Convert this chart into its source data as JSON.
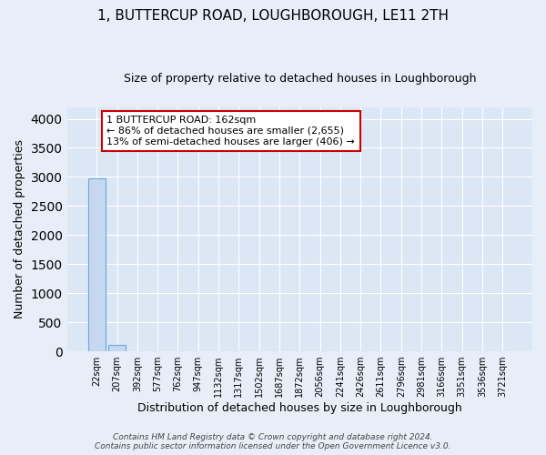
{
  "title": "1, BUTTERCUP ROAD, LOUGHBOROUGH, LE11 2TH",
  "subtitle": "Size of property relative to detached houses in Loughborough",
  "xlabel": "Distribution of detached houses by size in Loughborough",
  "ylabel": "Number of detached properties",
  "bar_labels": [
    "22sqm",
    "207sqm",
    "392sqm",
    "577sqm",
    "762sqm",
    "947sqm",
    "1132sqm",
    "1317sqm",
    "1502sqm",
    "1687sqm",
    "1872sqm",
    "2056sqm",
    "2241sqm",
    "2426sqm",
    "2611sqm",
    "2796sqm",
    "2981sqm",
    "3166sqm",
    "3351sqm",
    "3536sqm",
    "3721sqm"
  ],
  "bar_values": [
    2980,
    115,
    0,
    0,
    0,
    0,
    0,
    0,
    0,
    0,
    0,
    0,
    0,
    0,
    0,
    0,
    0,
    0,
    0,
    0,
    0
  ],
  "bar_color": "#c5d8ef",
  "bar_edge_color": "#6aaad4",
  "annotation_line1": "1 BUTTERCUP ROAD: 162sqm",
  "annotation_line2": "← 86% of detached houses are smaller (2,655)",
  "annotation_line3": "13% of semi-detached houses are larger (406) →",
  "annotation_box_color": "white",
  "annotation_box_edge_color": "#cc0000",
  "ylim": [
    0,
    4200
  ],
  "yticks": [
    0,
    500,
    1000,
    1500,
    2000,
    2500,
    3000,
    3500,
    4000
  ],
  "background_color": "#e8eef8",
  "plot_bg_color": "#dce7f5",
  "grid_color": "#ffffff",
  "footer_text": "Contains HM Land Registry data © Crown copyright and database right 2024.\nContains public sector information licensed under the Open Government Licence v3.0.",
  "title_fontsize": 11,
  "subtitle_fontsize": 9,
  "annotation_fontsize": 8,
  "ylabel_fontsize": 9,
  "xlabel_fontsize": 9
}
